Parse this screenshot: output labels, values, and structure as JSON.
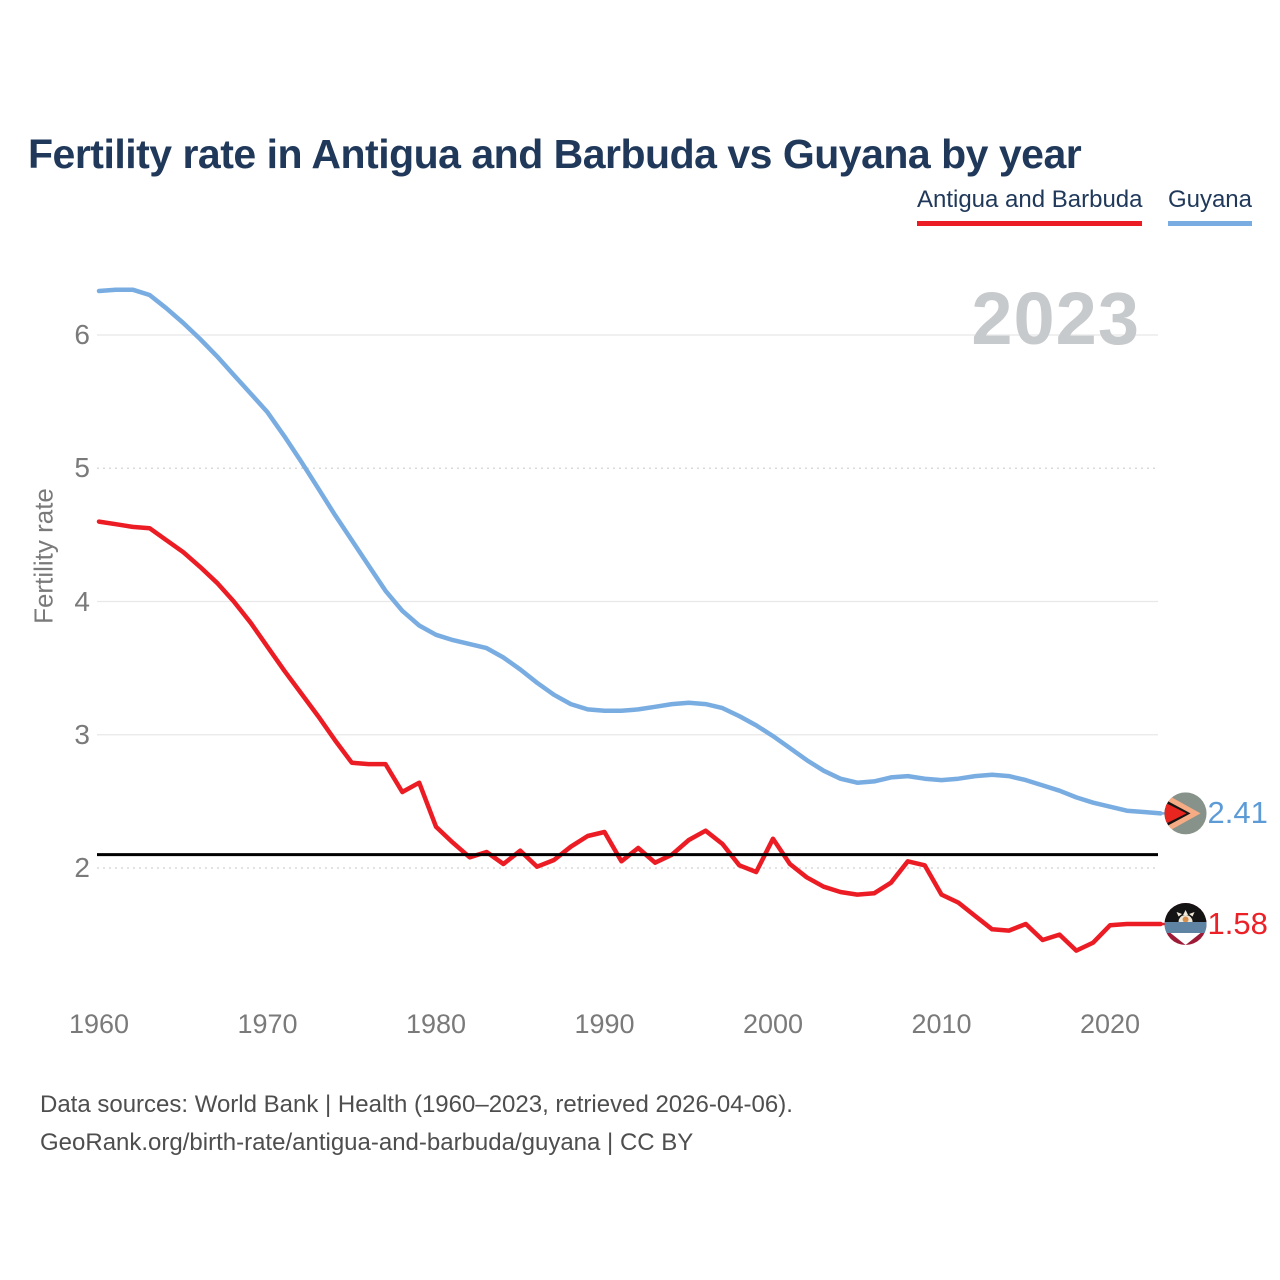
{
  "header": {
    "title": "Fertility rate in Antigua and Barbuda vs Guyana by year"
  },
  "legend": {
    "items": [
      {
        "label": "Antigua and Barbuda",
        "color": "#ec1c24"
      },
      {
        "label": "Guyana",
        "color": "#79ade2"
      }
    ]
  },
  "watermark": "2023",
  "chart_data": {
    "type": "line",
    "title": "Fertility rate in Antigua and Barbuda vs Guyana by year",
    "xlabel": "",
    "ylabel": "Fertility rate",
    "x_ticks": [
      1960,
      1970,
      1980,
      1990,
      2000,
      2010,
      2020
    ],
    "y_ticks": [
      2,
      3,
      4,
      5,
      6
    ],
    "dotted_y_ticks": [
      2,
      5
    ],
    "ylim": [
      1.3,
      6.55
    ],
    "xlim": [
      1960,
      2023
    ],
    "grid": true,
    "legend_position": "top-right",
    "x": [
      1960,
      1961,
      1962,
      1963,
      1964,
      1965,
      1966,
      1967,
      1968,
      1969,
      1970,
      1971,
      1972,
      1973,
      1974,
      1975,
      1976,
      1977,
      1978,
      1979,
      1980,
      1981,
      1982,
      1983,
      1984,
      1985,
      1986,
      1987,
      1988,
      1989,
      1990,
      1991,
      1992,
      1993,
      1994,
      1995,
      1996,
      1997,
      1998,
      1999,
      2000,
      2001,
      2002,
      2003,
      2004,
      2005,
      2006,
      2007,
      2008,
      2009,
      2010,
      2011,
      2012,
      2013,
      2014,
      2015,
      2016,
      2017,
      2018,
      2019,
      2020,
      2021,
      2022,
      2023
    ],
    "series": [
      {
        "name": "Antigua and Barbuda",
        "color": "#ec1c24",
        "end_label": "1.58",
        "flag": "antigua-and-barbuda",
        "values": [
          4.6,
          4.58,
          4.56,
          4.55,
          4.46,
          4.37,
          4.26,
          4.14,
          4.0,
          3.84,
          3.66,
          3.48,
          3.31,
          3.14,
          2.96,
          2.79,
          2.78,
          2.78,
          2.57,
          2.64,
          2.31,
          2.19,
          2.08,
          2.12,
          2.03,
          2.13,
          2.01,
          2.06,
          2.16,
          2.24,
          2.27,
          2.05,
          2.15,
          2.04,
          2.1,
          2.21,
          2.28,
          2.18,
          2.02,
          1.97,
          2.22,
          2.03,
          1.93,
          1.86,
          1.82,
          1.8,
          1.81,
          1.89,
          2.05,
          2.02,
          1.8,
          1.74,
          1.64,
          1.54,
          1.53,
          1.58,
          1.46,
          1.5,
          1.38,
          1.44,
          1.57,
          1.58,
          1.58,
          1.58
        ]
      },
      {
        "name": "Guyana",
        "color": "#79ade2",
        "end_label": "2.41",
        "flag": "guyana",
        "values": [
          6.33,
          6.34,
          6.34,
          6.3,
          6.2,
          6.09,
          5.97,
          5.84,
          5.7,
          5.56,
          5.42,
          5.24,
          5.05,
          4.85,
          4.65,
          4.46,
          4.27,
          4.08,
          3.93,
          3.82,
          3.75,
          3.71,
          3.68,
          3.65,
          3.58,
          3.49,
          3.39,
          3.3,
          3.23,
          3.19,
          3.18,
          3.18,
          3.19,
          3.21,
          3.23,
          3.24,
          3.23,
          3.2,
          3.14,
          3.07,
          2.99,
          2.9,
          2.81,
          2.73,
          2.67,
          2.64,
          2.65,
          2.68,
          2.69,
          2.67,
          2.66,
          2.67,
          2.69,
          2.7,
          2.69,
          2.66,
          2.62,
          2.58,
          2.53,
          2.49,
          2.46,
          2.43,
          2.42,
          2.41
        ]
      }
    ],
    "reference_line": {
      "value": 2.1,
      "color": "#000000"
    },
    "watermark": "2023"
  },
  "footer": {
    "line1": "Data sources: World Bank | Health (1960–2023, retrieved 2026-04-06).",
    "line2": "GeoRank.org/birth-rate/antigua-and-barbuda/guyana | CC BY"
  }
}
